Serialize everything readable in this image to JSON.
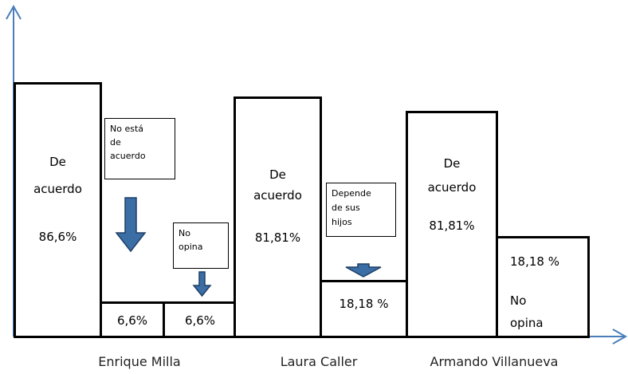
{
  "groups": [
    {
      "name": "Enrique Milla",
      "boxes": [
        {
          "label": "De acuerdo",
          "value": "86,6%"
        },
        {
          "value": "6,6%",
          "note": "No está de acuerdo"
        },
        {
          "value": "6,6%",
          "note": "No opina"
        }
      ]
    },
    {
      "name": "Laura Caller",
      "boxes": [
        {
          "label": "De acuerdo",
          "value": "81,81%"
        },
        {
          "value": "18,18 %",
          "note": "Depende de sus hijos"
        }
      ]
    },
    {
      "name": "Armando Villanueva",
      "boxes": [
        {
          "label": "De acuerdo",
          "value": "81,81%"
        },
        {
          "value": "18,18 %",
          "label": "No opina"
        }
      ]
    }
  ]
}
